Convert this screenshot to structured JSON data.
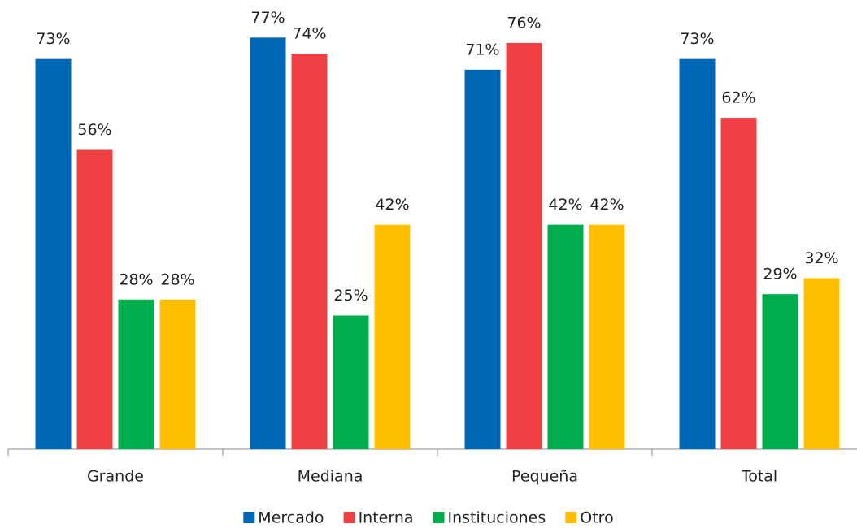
{
  "chart_data": {
    "type": "bar",
    "categories": [
      "Grande",
      "Mediana",
      "Pequeña",
      "Total"
    ],
    "series": [
      {
        "name": "Mercado",
        "color": "#0068b4",
        "values": [
          73,
          77,
          71,
          73
        ],
        "value_labels": [
          "73%",
          "77%",
          "71%",
          "73%"
        ]
      },
      {
        "name": "Interna",
        "color": "#ef4044",
        "values": [
          56,
          74,
          76,
          62
        ],
        "value_labels": [
          "56%",
          "74%",
          "76%",
          "62%"
        ]
      },
      {
        "name": "Instituciones",
        "color": "#00ad4d",
        "values": [
          28,
          25,
          42,
          29
        ],
        "value_labels": [
          "28%",
          "25%",
          "42%",
          "29%"
        ]
      },
      {
        "name": "Otro",
        "color": "#ffbf00",
        "values": [
          28,
          42,
          42,
          32
        ],
        "value_labels": [
          "28%",
          "42%",
          "42%",
          "32%"
        ]
      }
    ],
    "ylim": [
      0,
      80
    ],
    "grid": false,
    "legend": "bottom"
  }
}
